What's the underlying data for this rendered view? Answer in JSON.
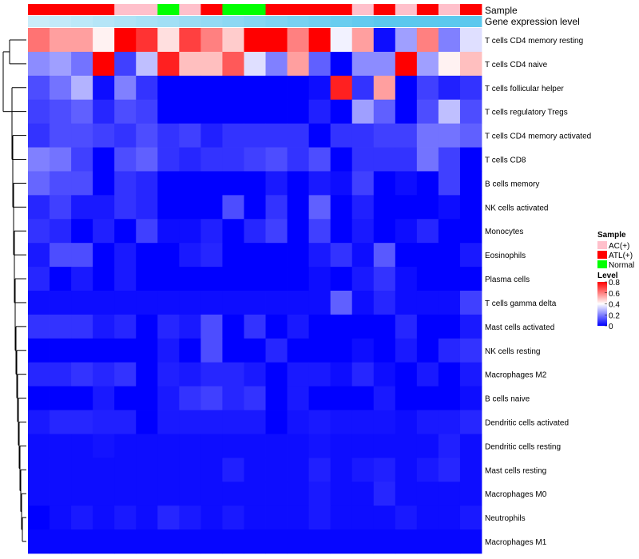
{
  "chart_data": {
    "type": "heatmap",
    "title": "",
    "annotation_labels": {
      "sample": "Sample",
      "expression": "Gene expression level"
    },
    "sample_groups": [
      "ATL(+)",
      "ATL(+)",
      "ATL(+)",
      "ATL(+)",
      "AC(+)",
      "AC(+)",
      "Normal",
      "AC(+)",
      "ATL(+)",
      "Normal",
      "Normal",
      "ATL(+)",
      "ATL(+)",
      "ATL(+)",
      "ATL(+)",
      "AC(+)",
      "ATL(+)",
      "AC(+)",
      "ATL(+)",
      "AC(+)",
      "ATL(+)"
    ],
    "expression_level": [
      0.2,
      0.25,
      0.3,
      0.35,
      0.4,
      0.45,
      0.5,
      0.55,
      0.6,
      0.65,
      0.7,
      0.75,
      0.8,
      0.85,
      0.9,
      0.95,
      1.0,
      1.0,
      1.0,
      1.0,
      1.0
    ],
    "rows": [
      "T cells CD4 memory resting",
      "T cells CD4 naive",
      "T cells follicular helper",
      "T cells regulatory  Tregs",
      "T cells CD4 memory activated",
      "T cells CD8",
      "B cells memory",
      "NK cells activated",
      "Monocytes",
      "Eosinophils",
      "Plasma cells",
      "T cells gamma delta",
      "Mast cells activated",
      "NK cells resting",
      "Macrophages M2",
      "B cells naive",
      "Dendritic cells activated",
      "Dendritic cells resting",
      "Mast cells resting",
      "Macrophages M0",
      "Neutrophils",
      "Macrophages M1"
    ],
    "values": [
      [
        0.62,
        0.55,
        0.55,
        0.42,
        0.8,
        0.72,
        0.45,
        0.7,
        0.6,
        0.48,
        0.8,
        0.8,
        0.6,
        0.8,
        0.38,
        0.55,
        0.02,
        0.25,
        0.6,
        0.2,
        0.35
      ],
      [
        0.22,
        0.25,
        0.18,
        0.8,
        0.1,
        0.3,
        0.75,
        0.5,
        0.5,
        0.66,
        0.35,
        0.2,
        0.55,
        0.15,
        0.0,
        0.22,
        0.22,
        0.8,
        0.25,
        0.42,
        0.5
      ],
      [
        0.12,
        0.18,
        0.28,
        0.02,
        0.2,
        0.08,
        0.0,
        0.0,
        0.0,
        0.0,
        0.0,
        0.0,
        0.0,
        0.02,
        0.75,
        0.08,
        0.55,
        0.0,
        0.1,
        0.05,
        0.08
      ],
      [
        0.1,
        0.12,
        0.15,
        0.06,
        0.12,
        0.1,
        0.0,
        0.0,
        0.0,
        0.0,
        0.0,
        0.0,
        0.0,
        0.05,
        0.0,
        0.25,
        0.15,
        0.0,
        0.12,
        0.3,
        0.12
      ],
      [
        0.08,
        0.12,
        0.12,
        0.1,
        0.08,
        0.12,
        0.08,
        0.1,
        0.05,
        0.08,
        0.08,
        0.08,
        0.08,
        0.0,
        0.08,
        0.08,
        0.1,
        0.1,
        0.18,
        0.18,
        0.15
      ],
      [
        0.2,
        0.18,
        0.1,
        0.0,
        0.12,
        0.15,
        0.08,
        0.06,
        0.08,
        0.08,
        0.1,
        0.12,
        0.08,
        0.12,
        0.0,
        0.08,
        0.08,
        0.08,
        0.18,
        0.1,
        0.0
      ],
      [
        0.16,
        0.12,
        0.12,
        0.0,
        0.08,
        0.06,
        0.0,
        0.0,
        0.0,
        0.0,
        0.0,
        0.04,
        0.0,
        0.04,
        0.02,
        0.1,
        0.0,
        0.02,
        0.0,
        0.1,
        0.0
      ],
      [
        0.06,
        0.1,
        0.04,
        0.04,
        0.08,
        0.06,
        0.0,
        0.0,
        0.0,
        0.12,
        0.0,
        0.08,
        0.0,
        0.15,
        0.0,
        0.05,
        0.0,
        0.0,
        0.0,
        0.02,
        0.0
      ],
      [
        0.08,
        0.06,
        0.0,
        0.05,
        0.0,
        0.1,
        0.02,
        0.02,
        0.05,
        0.0,
        0.06,
        0.1,
        0.0,
        0.1,
        0.0,
        0.04,
        0.0,
        0.02,
        0.06,
        0.0,
        0.0
      ],
      [
        0.04,
        0.12,
        0.12,
        0.0,
        0.04,
        0.0,
        0.0,
        0.04,
        0.06,
        0.0,
        0.0,
        0.0,
        0.0,
        0.04,
        0.08,
        0.02,
        0.14,
        0.0,
        0.0,
        0.0,
        0.04
      ],
      [
        0.06,
        0.0,
        0.04,
        0.0,
        0.04,
        0.0,
        0.0,
        0.0,
        0.0,
        0.0,
        0.0,
        0.0,
        0.0,
        0.02,
        0.0,
        0.04,
        0.08,
        0.02,
        0.0,
        0.0,
        0.0
      ],
      [
        0.02,
        0.02,
        0.02,
        0.02,
        0.02,
        0.02,
        0.02,
        0.02,
        0.02,
        0.02,
        0.02,
        0.02,
        0.02,
        0.02,
        0.15,
        0.02,
        0.06,
        0.02,
        0.02,
        0.02,
        0.1
      ],
      [
        0.08,
        0.08,
        0.08,
        0.04,
        0.06,
        0.0,
        0.06,
        0.04,
        0.12,
        0.0,
        0.08,
        0.0,
        0.04,
        0.0,
        0.0,
        0.0,
        0.0,
        0.06,
        0.0,
        0.0,
        0.04
      ],
      [
        0.0,
        0.0,
        0.0,
        0.0,
        0.0,
        0.0,
        0.04,
        0.0,
        0.12,
        0.0,
        0.0,
        0.06,
        0.0,
        0.0,
        0.0,
        0.02,
        0.0,
        0.04,
        0.0,
        0.06,
        0.08
      ],
      [
        0.06,
        0.06,
        0.08,
        0.06,
        0.08,
        0.0,
        0.05,
        0.04,
        0.06,
        0.06,
        0.04,
        0.0,
        0.04,
        0.04,
        0.02,
        0.06,
        0.02,
        0.0,
        0.04,
        0.0,
        0.04
      ],
      [
        0.0,
        0.0,
        0.0,
        0.04,
        0.0,
        0.0,
        0.04,
        0.08,
        0.1,
        0.06,
        0.08,
        0.0,
        0.04,
        0.0,
        0.0,
        0.0,
        0.04,
        0.0,
        0.0,
        0.0,
        0.02
      ],
      [
        0.04,
        0.06,
        0.06,
        0.05,
        0.05,
        0.0,
        0.04,
        0.04,
        0.04,
        0.04,
        0.04,
        0.0,
        0.03,
        0.04,
        0.03,
        0.03,
        0.03,
        0.02,
        0.04,
        0.04,
        0.06
      ],
      [
        0.02,
        0.02,
        0.02,
        0.03,
        0.02,
        0.02,
        0.02,
        0.02,
        0.02,
        0.02,
        0.02,
        0.02,
        0.02,
        0.03,
        0.02,
        0.02,
        0.02,
        0.02,
        0.02,
        0.05,
        0.02
      ],
      [
        0.02,
        0.02,
        0.02,
        0.02,
        0.02,
        0.02,
        0.02,
        0.02,
        0.02,
        0.05,
        0.02,
        0.02,
        0.02,
        0.05,
        0.02,
        0.04,
        0.05,
        0.02,
        0.04,
        0.06,
        0.02
      ],
      [
        0.02,
        0.02,
        0.02,
        0.02,
        0.02,
        0.02,
        0.02,
        0.02,
        0.02,
        0.02,
        0.02,
        0.02,
        0.02,
        0.04,
        0.02,
        0.02,
        0.06,
        0.02,
        0.02,
        0.02,
        0.02
      ],
      [
        0.0,
        0.02,
        0.04,
        0.02,
        0.04,
        0.02,
        0.06,
        0.04,
        0.02,
        0.04,
        0.02,
        0.02,
        0.02,
        0.04,
        0.02,
        0.02,
        0.02,
        0.04,
        0.02,
        0.02,
        0.04
      ],
      [
        0.01,
        0.01,
        0.01,
        0.01,
        0.01,
        0.01,
        0.01,
        0.01,
        0.01,
        0.01,
        0.01,
        0.01,
        0.01,
        0.01,
        0.01,
        0.01,
        0.01,
        0.01,
        0.01,
        0.01,
        0.01
      ]
    ],
    "legend": {
      "sample_title": "Sample",
      "sample_items": [
        {
          "label": "AC(+)",
          "color": "#ffc0cb"
        },
        {
          "label": "ATL(+)",
          "color": "#ff0000"
        },
        {
          "label": "Normal",
          "color": "#00ff00"
        }
      ],
      "level_title": "Level",
      "level_ticks": [
        "0.8",
        "0.6",
        "0.4",
        "0.2",
        "0"
      ],
      "level_range": [
        0,
        0.8
      ]
    },
    "colors": {
      "low": "#0000ff",
      "mid": "#ffffff",
      "high": "#ff0000"
    },
    "expression_colors": [
      "#87cefa",
      "#00bfff"
    ]
  }
}
